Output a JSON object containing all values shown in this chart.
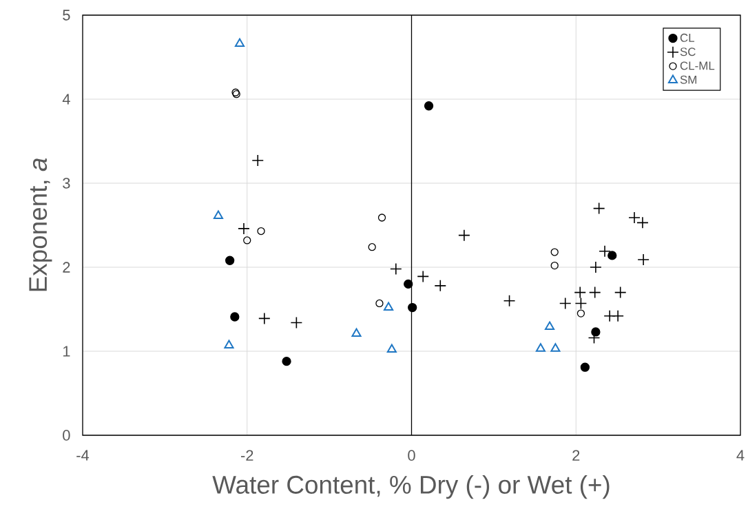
{
  "chart_data": {
    "type": "scatter",
    "xlabel": "Water Content, % Dry (-) or Wet (+)",
    "ylabel": "Exponent, *a*",
    "xlim": [
      -4,
      4
    ],
    "xticks": [
      -4,
      -2,
      0,
      2,
      4
    ],
    "ylim": [
      0,
      5
    ],
    "yticks": [
      0,
      1,
      2,
      3,
      4,
      5
    ],
    "grid": true,
    "legend": "top right",
    "ref_lines": [
      {
        "axis": "x",
        "value": 0,
        "color": "#000000",
        "line_style": "solid"
      }
    ],
    "series": [
      {
        "name": "CL",
        "color": "#000000",
        "marker": "circle",
        "x": [
          -2.21,
          -2.15,
          -1.52,
          0.21,
          -0.04,
          0.01,
          2.44,
          2.24,
          2.11
        ],
        "values": [
          2.08,
          1.41,
          0.88,
          3.92,
          1.8,
          1.52,
          2.14,
          1.23,
          0.81
        ]
      },
      {
        "name": "SC",
        "color": "#000000",
        "marker": "cross",
        "x": [
          -1.87,
          -2.04,
          -1.79,
          -1.4,
          -0.19,
          0.14,
          0.35,
          0.64,
          1.19,
          2.28,
          2.71,
          2.81,
          2.35,
          2.82,
          2.24,
          2.05,
          2.23,
          2.54,
          1.87,
          2.06,
          2.41,
          2.51,
          2.22
        ],
        "values": [
          3.27,
          2.46,
          1.39,
          1.34,
          1.98,
          1.89,
          1.78,
          2.38,
          1.6,
          2.7,
          2.59,
          2.53,
          2.19,
          2.09,
          2.0,
          1.7,
          1.7,
          1.7,
          1.57,
          1.57,
          1.42,
          1.42,
          1.16
        ]
      },
      {
        "name": "CL-ML",
        "color": "#000000",
        "marker": "circle",
        "x": [
          -2.14,
          -2.13,
          -1.83,
          -2.0,
          -0.36,
          -0.48,
          -0.39,
          1.74,
          1.74,
          2.06
        ],
        "values": [
          4.08,
          4.06,
          2.43,
          2.32,
          2.59,
          2.24,
          1.57,
          2.18,
          2.02,
          1.45
        ]
      },
      {
        "name": "SM",
        "color": "#1f77c4",
        "marker": "triangle",
        "x": [
          -2.09,
          -2.35,
          -2.22,
          -0.67,
          -0.28,
          -0.24,
          1.68,
          1.57,
          1.75
        ],
        "values": [
          4.66,
          2.61,
          1.07,
          1.21,
          1.52,
          1.02,
          1.29,
          1.03,
          1.03
        ]
      }
    ]
  }
}
